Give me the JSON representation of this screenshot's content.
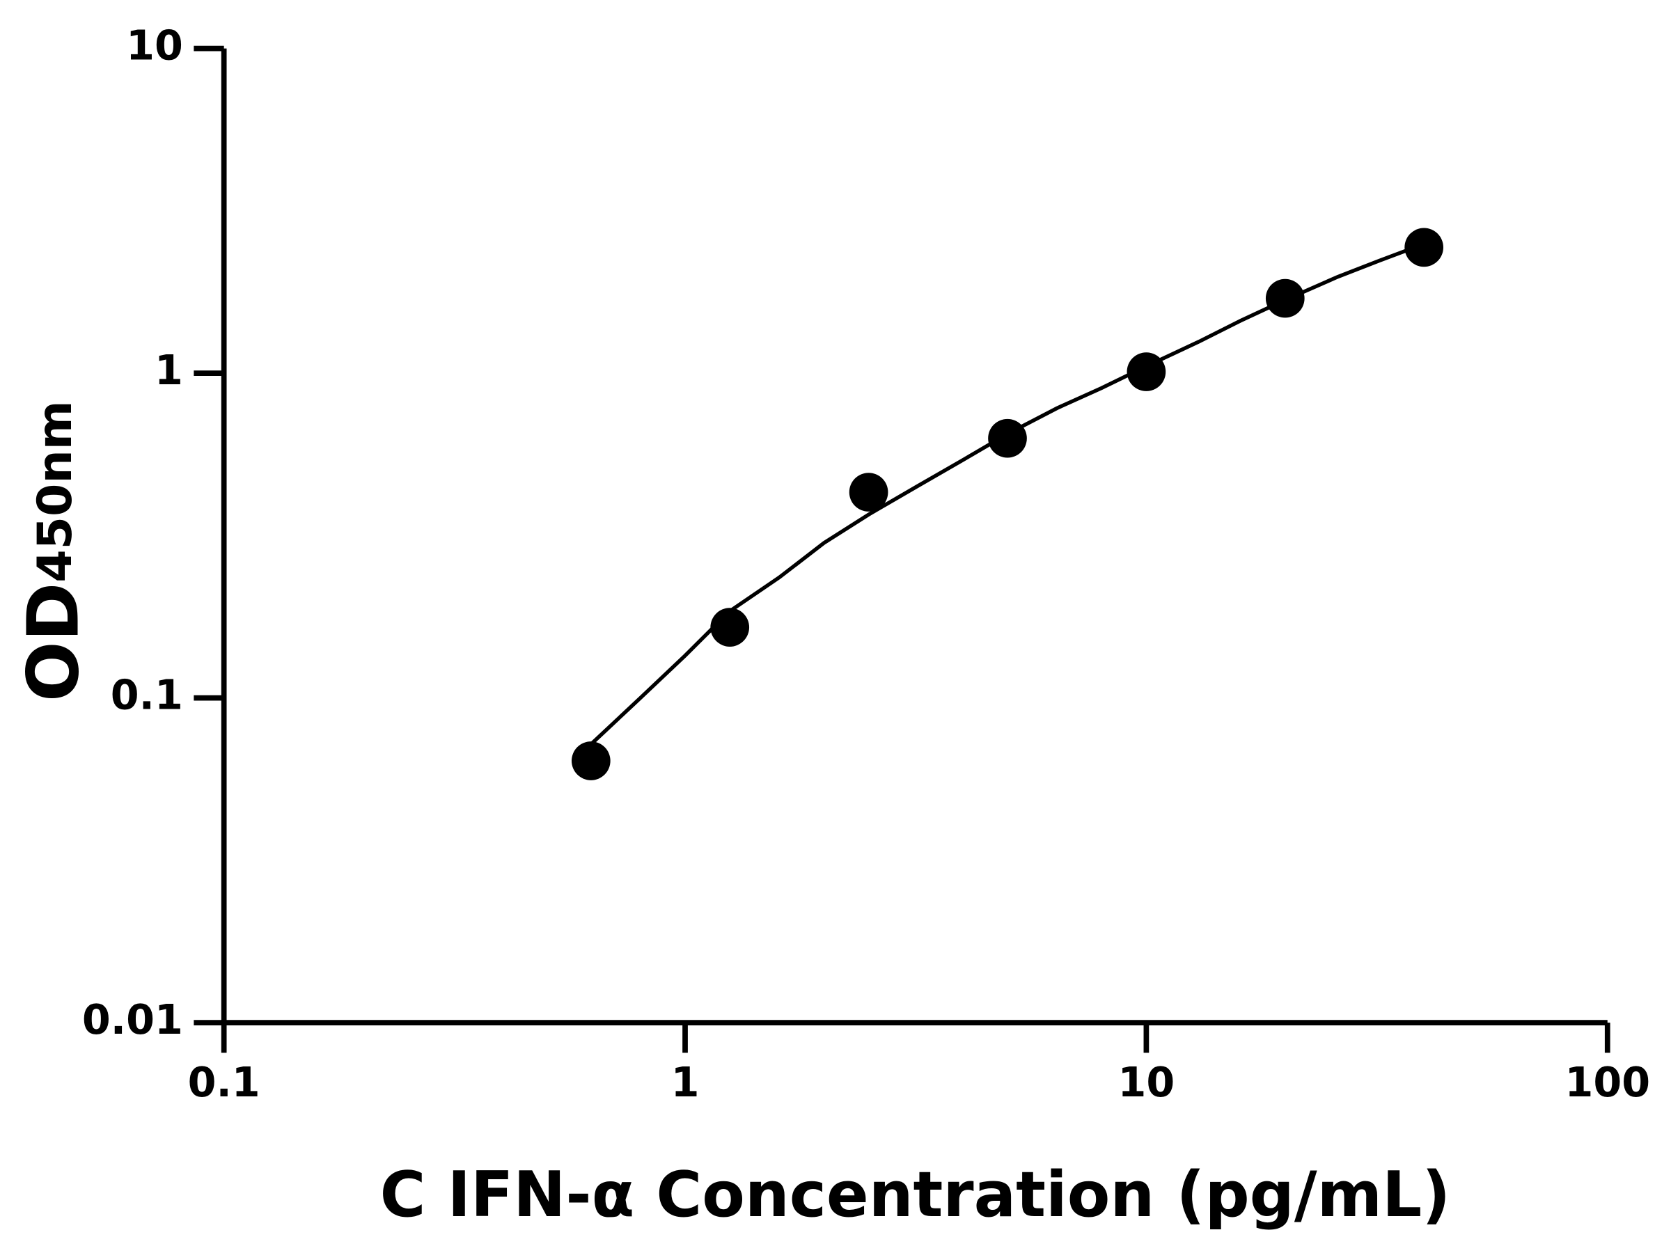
{
  "chart_data": {
    "type": "scatter",
    "xlabel": "C IFN-α Concentration (pg/mL)",
    "ylabel": "OD",
    "ylabel_sub": "450nm",
    "xscale": "log",
    "yscale": "log",
    "xlim": [
      0.1,
      100
    ],
    "ylim": [
      0.01,
      10
    ],
    "xticks": [
      0.1,
      1,
      10,
      100
    ],
    "yticks": [
      0.01,
      0.1,
      1,
      10
    ],
    "grid": false,
    "series": [
      {
        "style": "marker",
        "color": "#000000",
        "x": [
          0.625,
          1.25,
          2.5,
          5,
          10,
          20,
          40
        ],
        "values": [
          0.064,
          0.165,
          0.43,
          0.63,
          1.01,
          1.7,
          2.44
        ]
      },
      {
        "style": "line",
        "color": "#000000",
        "x": [
          0.625,
          0.8,
          1,
          1.25,
          1.6,
          2,
          2.5,
          3.2,
          4,
          5,
          6.4,
          8,
          10,
          13,
          16,
          20,
          26,
          32,
          40
        ],
        "values": [
          0.072,
          0.1,
          0.135,
          0.185,
          0.235,
          0.3,
          0.367,
          0.45,
          0.54,
          0.65,
          0.78,
          0.9,
          1.05,
          1.25,
          1.45,
          1.68,
          1.98,
          2.22,
          2.5
        ]
      }
    ]
  }
}
